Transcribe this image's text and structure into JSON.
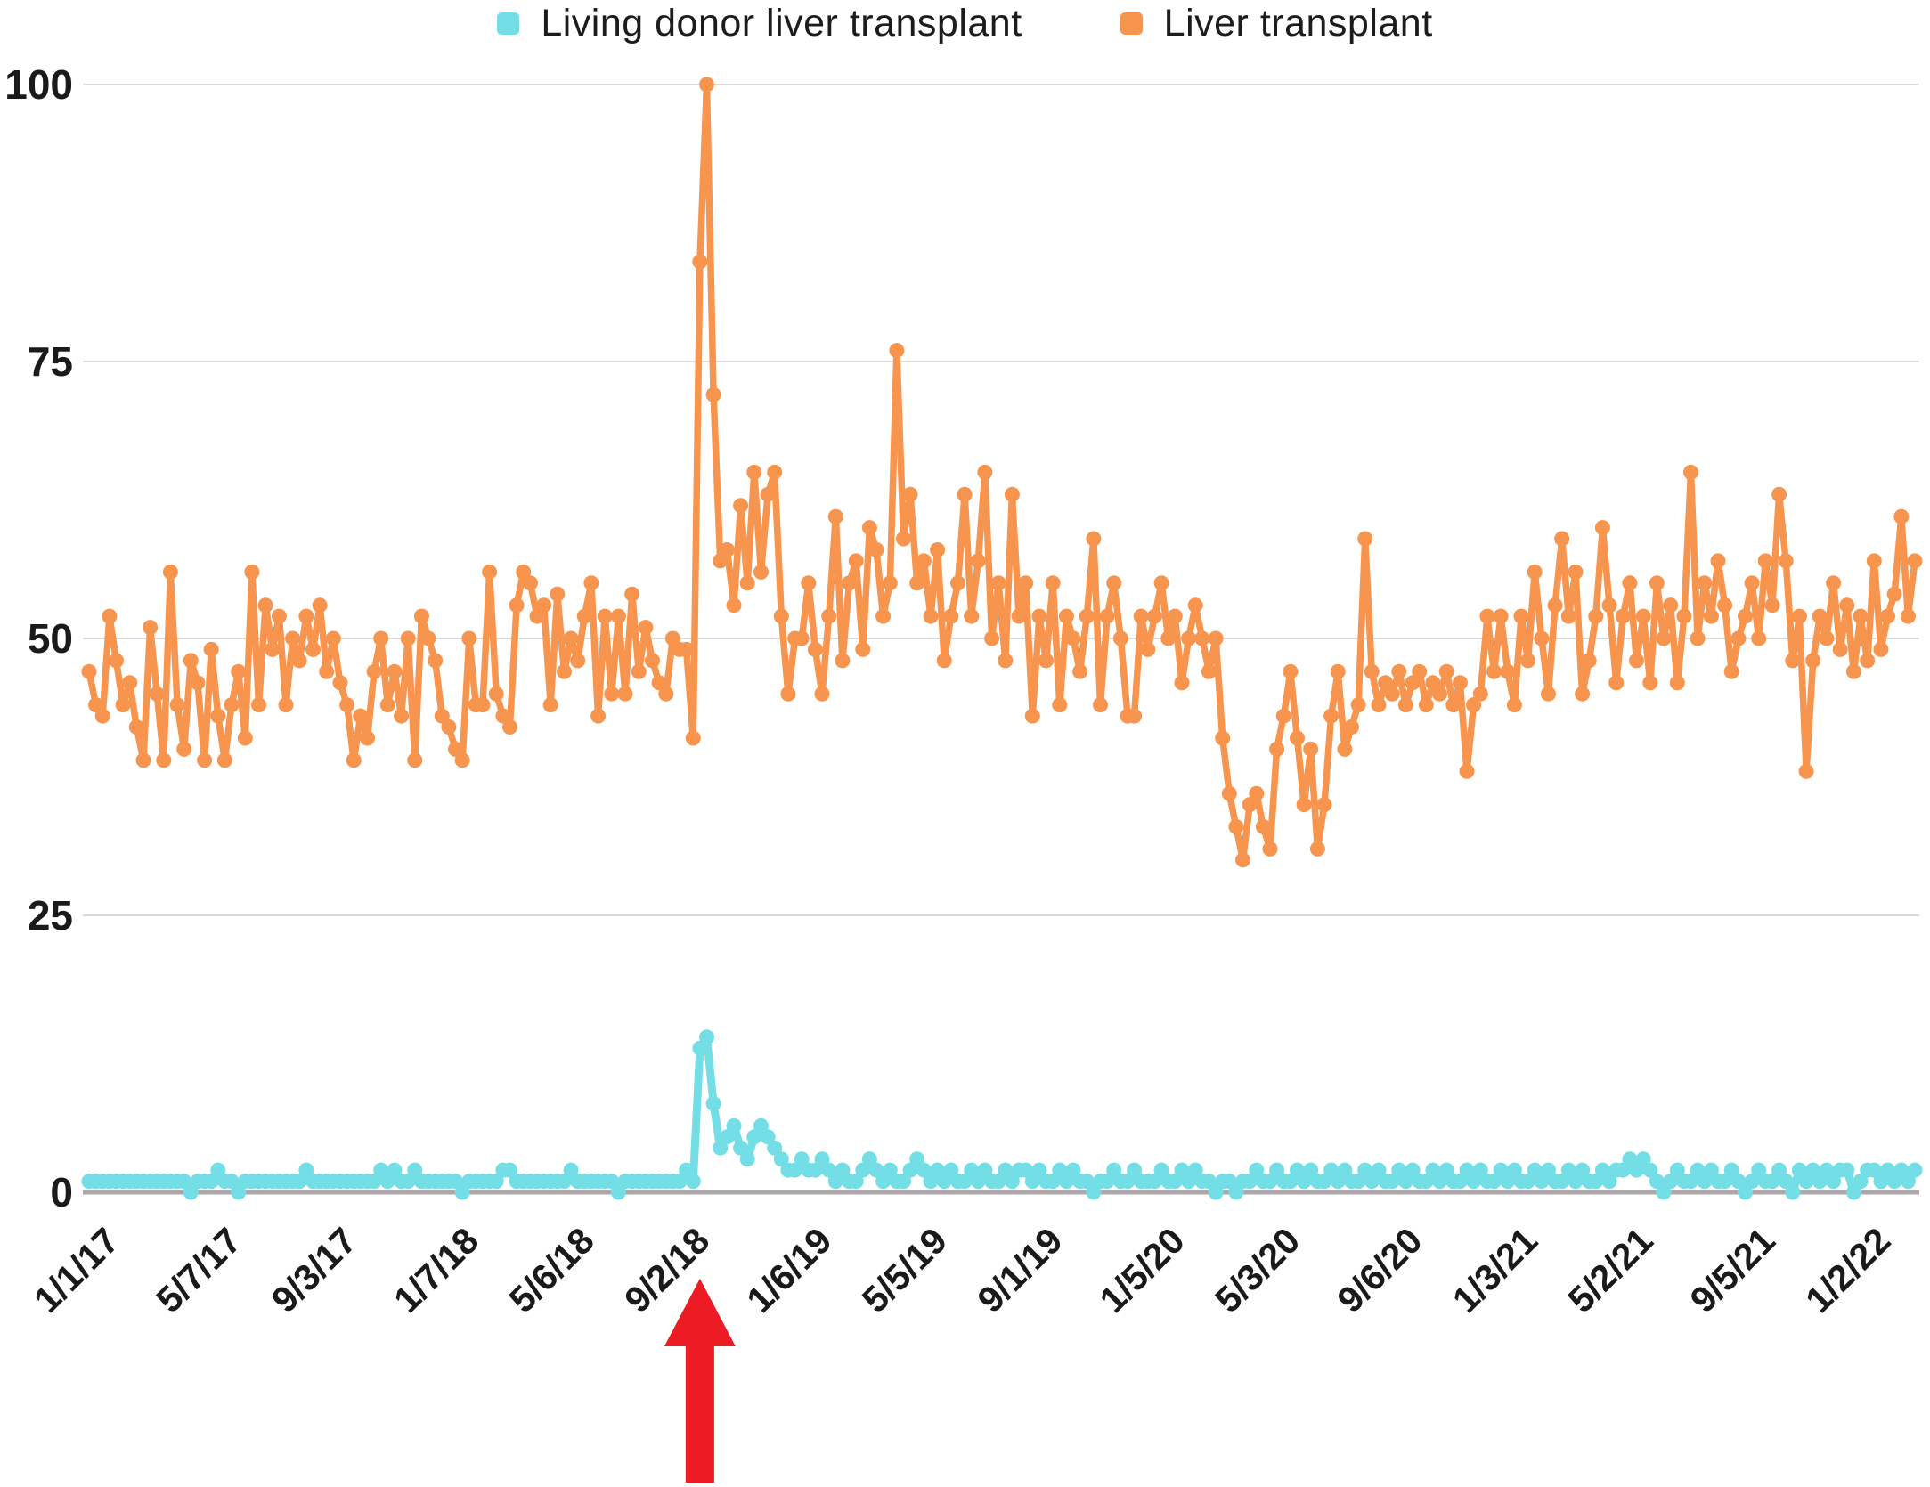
{
  "legend": {
    "items": [
      {
        "label": "Living donor liver transplant",
        "color": "#74DEE6"
      },
      {
        "label": "Liver transplant",
        "color": "#F7944D"
      }
    ]
  },
  "y_axis": {
    "tick_labels": [
      "100",
      "75",
      "50",
      "25",
      "0"
    ],
    "tick_values": [
      100,
      75,
      50,
      25,
      0
    ]
  },
  "x_axis": {
    "tick_labels": [
      "1/1/17",
      "5/7/17",
      "9/3/17",
      "1/7/18",
      "5/6/18",
      "9/2/18",
      "1/6/19",
      "5/5/19",
      "9/1/19",
      "1/5/20",
      "5/3/20",
      "9/6/20",
      "1/3/21",
      "5/2/21",
      "9/5/21",
      "1/2/22"
    ],
    "tick_weeks": [
      0,
      18,
      35,
      53,
      70,
      87,
      105,
      122,
      139,
      157,
      174,
      192,
      209,
      226,
      244,
      261
    ]
  },
  "annotation": {
    "type": "red-up-arrow",
    "color": "#ED1C24",
    "week": 90,
    "points_at": "spike at week of 9/2/18"
  },
  "colors": {
    "gridline": "#DADADA",
    "axis_line": "#ABA7AB",
    "label_text": "#1A1A1A"
  },
  "chart_data": {
    "type": "line",
    "title": "",
    "xlabel": "",
    "ylabel": "",
    "ylim": [
      0,
      100
    ],
    "grid": "horizontal",
    "legend_position": "top-center",
    "cadence": "weekly",
    "x_start_label": "1/1/17",
    "n_points": 270,
    "series": [
      {
        "name": "Living donor liver transplant",
        "color": "#74DEE6",
        "values": [
          1,
          1,
          1,
          1,
          1,
          1,
          1,
          1,
          1,
          1,
          1,
          1,
          1,
          1,
          1,
          0,
          1,
          1,
          1,
          2,
          1,
          1,
          0,
          1,
          1,
          1,
          1,
          1,
          1,
          1,
          1,
          1,
          2,
          1,
          1,
          1,
          1,
          1,
          1,
          1,
          1,
          1,
          1,
          2,
          1,
          2,
          1,
          1,
          2,
          1,
          1,
          1,
          1,
          1,
          1,
          0,
          1,
          1,
          1,
          1,
          1,
          2,
          2,
          1,
          1,
          1,
          1,
          1,
          1,
          1,
          1,
          2,
          1,
          1,
          1,
          1,
          1,
          1,
          0,
          1,
          1,
          1,
          1,
          1,
          1,
          1,
          1,
          1,
          2,
          1,
          13,
          14,
          8,
          4,
          5,
          6,
          4,
          3,
          5,
          6,
          5,
          4,
          3,
          2,
          2,
          3,
          2,
          2,
          3,
          2,
          1,
          2,
          1,
          1,
          2,
          3,
          2,
          1,
          2,
          1,
          1,
          2,
          3,
          2,
          1,
          2,
          1,
          2,
          1,
          1,
          2,
          1,
          2,
          1,
          1,
          2,
          1,
          2,
          2,
          1,
          2,
          1,
          1,
          2,
          1,
          2,
          1,
          1,
          0,
          1,
          1,
          2,
          1,
          1,
          2,
          1,
          1,
          1,
          2,
          1,
          1,
          2,
          1,
          2,
          1,
          1,
          0,
          1,
          1,
          0,
          1,
          1,
          2,
          1,
          1,
          2,
          1,
          1,
          2,
          1,
          2,
          1,
          1,
          2,
          1,
          2,
          1,
          1,
          2,
          1,
          2,
          1,
          1,
          2,
          1,
          2,
          1,
          1,
          2,
          1,
          2,
          1,
          1,
          2,
          1,
          2,
          1,
          1,
          2,
          1,
          2,
          1,
          1,
          2,
          1,
          2,
          1,
          1,
          2,
          1,
          2,
          1,
          1,
          2,
          1,
          2,
          2,
          3,
          2,
          3,
          2,
          1,
          0,
          1,
          2,
          1,
          1,
          2,
          1,
          2,
          1,
          1,
          2,
          1,
          0,
          1,
          2,
          1,
          1,
          2,
          1,
          0,
          2,
          1,
          2,
          1,
          2,
          1,
          2,
          2,
          0,
          1,
          2,
          2,
          1,
          2,
          1,
          2,
          1,
          2
        ]
      },
      {
        "name": "Liver transplant",
        "color": "#F7944D",
        "values": [
          47,
          44,
          43,
          52,
          48,
          44,
          46,
          42,
          39,
          51,
          45,
          39,
          56,
          44,
          40,
          48,
          46,
          39,
          49,
          43,
          39,
          44,
          47,
          41,
          56,
          44,
          53,
          49,
          52,
          44,
          50,
          48,
          52,
          49,
          53,
          47,
          50,
          46,
          44,
          39,
          43,
          41,
          47,
          50,
          44,
          47,
          43,
          50,
          39,
          52,
          50,
          48,
          43,
          42,
          40,
          39,
          50,
          44,
          44,
          56,
          45,
          43,
          42,
          53,
          56,
          55,
          52,
          53,
          44,
          54,
          47,
          50,
          48,
          52,
          55,
          43,
          52,
          45,
          52,
          45,
          54,
          47,
          51,
          48,
          46,
          45,
          50,
          49,
          49,
          41,
          84,
          100,
          72,
          57,
          58,
          53,
          62,
          55,
          65,
          56,
          63,
          65,
          52,
          45,
          50,
          50,
          55,
          49,
          45,
          52,
          61,
          48,
          55,
          57,
          49,
          60,
          58,
          52,
          55,
          76,
          59,
          63,
          55,
          57,
          52,
          58,
          48,
          52,
          55,
          63,
          52,
          57,
          65,
          50,
          55,
          48,
          63,
          52,
          55,
          43,
          52,
          48,
          55,
          44,
          52,
          50,
          47,
          52,
          59,
          44,
          52,
          55,
          50,
          43,
          43,
          52,
          49,
          52,
          55,
          50,
          52,
          46,
          50,
          53,
          50,
          47,
          50,
          41,
          36,
          33,
          30,
          35,
          36,
          33,
          31,
          40,
          43,
          47,
          41,
          35,
          40,
          31,
          35,
          43,
          47,
          40,
          42,
          44,
          59,
          47,
          44,
          46,
          45,
          47,
          44,
          46,
          47,
          44,
          46,
          45,
          47,
          44,
          46,
          38,
          44,
          45,
          52,
          47,
          52,
          47,
          44,
          52,
          48,
          56,
          50,
          45,
          53,
          59,
          52,
          56,
          45,
          48,
          52,
          60,
          53,
          46,
          52,
          55,
          48,
          52,
          46,
          55,
          50,
          53,
          46,
          52,
          65,
          50,
          55,
          52,
          57,
          53,
          47,
          50,
          52,
          55,
          50,
          57,
          53,
          63,
          57,
          48,
          52,
          38,
          48,
          52,
          50,
          55,
          49,
          53,
          47,
          52,
          48,
          57,
          49,
          52,
          54,
          61,
          52,
          57
        ]
      }
    ]
  }
}
